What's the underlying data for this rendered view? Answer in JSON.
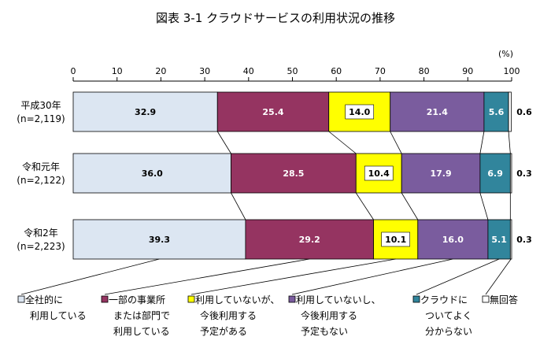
{
  "chart_data": {
    "type": "bar",
    "orientation": "horizontal",
    "stacked": true,
    "title": "図表 3-1 クラウドサービスの利用状況の推移",
    "unit_label": "(%)",
    "xlim": [
      0,
      100
    ],
    "ticks": [
      "0",
      "10",
      "20",
      "30",
      "40",
      "50",
      "60",
      "70",
      "80",
      "90",
      "100"
    ],
    "grid": false,
    "legend_position": "bottom",
    "categories": [
      {
        "line1": "平成30年",
        "line2": "(n=2,119)"
      },
      {
        "line1": "令和元年",
        "line2": "(n=2,122)"
      },
      {
        "line1": "令和2年",
        "line2": "(n=2,223)"
      }
    ],
    "series": [
      {
        "name": "全社的に利用している",
        "legend_lines": [
          "全社的に",
          "利用している"
        ],
        "color": "#dce6f2",
        "text_color": "#000000",
        "values": [
          32.9,
          36.0,
          39.3
        ]
      },
      {
        "name": "一部の事業所または部門で利用している",
        "legend_lines": [
          "一部の事業所",
          "または部門で",
          "利用している"
        ],
        "color": "#953461",
        "text_color": "#ffffff",
        "values": [
          25.4,
          28.5,
          29.2
        ]
      },
      {
        "name": "利用していないが、今後利用する予定がある",
        "legend_lines": [
          "利用していないが、",
          "今後利用する",
          "予定がある"
        ],
        "color": "#ffff00",
        "text_color": "#000000",
        "values": [
          14.0,
          10.4,
          10.1
        ]
      },
      {
        "name": "利用していないし、今後利用する予定もない",
        "legend_lines": [
          "利用していないし、",
          "今後利用する",
          "予定もない"
        ],
        "color": "#7a5c9e",
        "text_color": "#ffffff",
        "values": [
          21.4,
          17.9,
          16.0
        ]
      },
      {
        "name": "クラウドについてよく分からない",
        "legend_lines": [
          "クラウドに",
          "ついてよく",
          "分からない"
        ],
        "color": "#31859c",
        "text_color": "#ffffff",
        "values": [
          5.6,
          6.9,
          5.1
        ]
      },
      {
        "name": "無回答",
        "legend_lines": [
          "無回答"
        ],
        "color": "#ffffff",
        "text_color": "#000000",
        "values": [
          0.6,
          0.3,
          0.3
        ]
      }
    ],
    "value_labels": [
      [
        "32.9",
        "25.4",
        "14.0",
        "21.4",
        "5.6",
        "0.6"
      ],
      [
        "36.0",
        "28.5",
        "10.4",
        "17.9",
        "6.9",
        "0.3"
      ],
      [
        "39.3",
        "29.2",
        "10.1",
        "16.0",
        "5.1",
        "0.3"
      ]
    ]
  }
}
